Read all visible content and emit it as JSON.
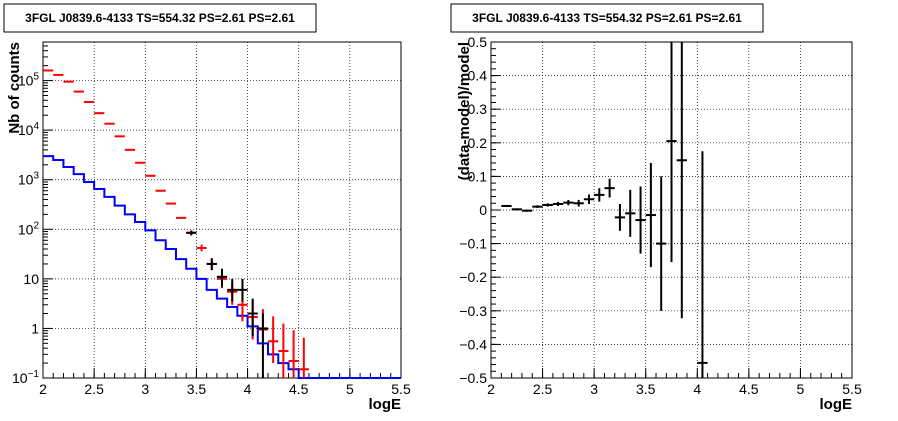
{
  "chart_data": [
    {
      "type": "line",
      "title": "3FGL J0839.6-4133 TS=554.32 PS=2.61 PS=2.61",
      "xlabel": "logE",
      "ylabel": "Nb of counts",
      "xlim": [
        2,
        5.5
      ],
      "ylim": [
        0.1,
        600000
      ],
      "yscale": "log",
      "grid": true,
      "x_ticks": [
        "2",
        "2.5",
        "3",
        "3.5",
        "4",
        "4.5",
        "5",
        "5.5"
      ],
      "y_ticks": [
        "10^{-1}",
        "1",
        "10",
        "10^{2}",
        "10^{3}",
        "10^{4}",
        "10^{5}"
      ],
      "bin_edges": [
        2.0,
        2.1,
        2.2,
        2.3,
        2.4,
        2.5,
        2.6,
        2.7,
        2.8,
        2.9,
        3.0,
        3.1,
        3.2,
        3.3,
        3.4,
        3.5,
        3.6,
        3.7,
        3.8,
        3.9,
        4.0,
        4.1,
        4.2,
        4.3,
        4.4,
        4.5,
        4.6,
        4.7,
        4.8,
        4.9,
        5.0,
        5.1,
        5.2,
        5.3,
        5.4,
        5.5
      ],
      "series": [
        {
          "style": "histogram",
          "color": "#0000ff",
          "values": [
            3000,
            2500,
            1800,
            1300,
            900,
            650,
            450,
            300,
            200,
            140,
            95,
            60,
            40,
            25,
            16,
            10,
            6,
            4,
            2.7,
            1.8,
            1.1,
            0.5,
            0.3,
            0.2,
            0.15,
            0.1,
            0.1,
            0.1,
            0.1,
            0.1,
            0.1,
            0.1,
            0.1,
            0.1,
            0.1
          ]
        },
        {
          "style": "errorbars",
          "color": "#ff0000",
          "x": [
            2.05,
            2.15,
            2.25,
            2.35,
            2.45,
            2.55,
            2.65,
            2.75,
            2.85,
            2.95,
            3.05,
            3.15,
            3.25,
            3.35,
            3.45,
            3.55,
            3.65,
            3.75,
            3.85,
            3.95,
            4.05,
            4.15,
            4.25,
            4.35,
            4.45,
            4.55
          ],
          "y": [
            160000,
            130000,
            95000,
            60000,
            37000,
            22000,
            13500,
            7500,
            4000,
            2200,
            1200,
            600,
            330,
            170,
            85,
            42,
            20,
            10,
            5.5,
            3,
            1.7,
            0.95,
            0.55,
            0.35,
            0.22,
            0.15
          ],
          "err_low": [
            0,
            0,
            0,
            0,
            0,
            0,
            0,
            0,
            0,
            0,
            0,
            0,
            0,
            0,
            10,
            6,
            5,
            3.5,
            2.5,
            1.6,
            1.1,
            0.55,
            0.35,
            0.25,
            0.17,
            0.1
          ],
          "err_high": [
            0,
            0,
            0,
            0,
            0,
            0,
            0,
            0,
            0,
            0,
            0,
            0,
            0,
            0,
            10,
            7,
            6,
            4,
            3,
            2.5,
            1.9,
            1.5,
            1.2,
            0.9,
            0.7,
            0.5
          ]
        },
        {
          "style": "errorbars",
          "color": "#000000",
          "x": [
            3.45,
            3.65,
            3.75,
            3.85,
            3.95,
            4.05,
            4.15
          ],
          "y": [
            85,
            20,
            11,
            6,
            6,
            2,
            1
          ],
          "err_low": [
            9,
            5,
            4,
            2.5,
            2.5,
            1.3,
            0.9
          ],
          "err_high": [
            9,
            6,
            5,
            4,
            4,
            2,
            1
          ]
        }
      ]
    },
    {
      "type": "scatter",
      "title": "3FGL J0839.6-4133 TS=554.32 PS=2.61 PS=2.61",
      "xlabel": "logE",
      "ylabel": "(data-model)/model",
      "xlim": [
        2,
        5.5
      ],
      "ylim": [
        -0.5,
        0.5
      ],
      "grid": true,
      "x_ticks": [
        "2",
        "2.5",
        "3",
        "3.5",
        "4",
        "4.5",
        "5",
        "5.5"
      ],
      "y_ticks": [
        "-0.5",
        "-0.4",
        "-0.3",
        "-0.2",
        "-0.1",
        "0",
        "0.1",
        "0.2",
        "0.3",
        "0.4",
        "0.5"
      ],
      "series": [
        {
          "style": "errorbars",
          "color": "#000000",
          "x": [
            2.15,
            2.25,
            2.35,
            2.45,
            2.55,
            2.65,
            2.75,
            2.85,
            2.95,
            3.05,
            3.15,
            3.25,
            3.35,
            3.45,
            3.55,
            3.65,
            3.75,
            3.85,
            4.05
          ],
          "y": [
            0.012,
            0.002,
            -0.002,
            0.01,
            0.015,
            0.018,
            0.022,
            0.02,
            0.032,
            0.045,
            0.065,
            -0.022,
            -0.01,
            -0.03,
            -0.015,
            -0.1,
            0.205,
            0.148,
            -0.455
          ],
          "err": [
            0.003,
            0.003,
            0.003,
            0.004,
            0.005,
            0.006,
            0.008,
            0.01,
            0.014,
            0.02,
            0.028,
            0.04,
            0.07,
            0.1,
            0.155,
            0.2,
            0.36,
            0.47,
            0.63
          ]
        }
      ]
    }
  ]
}
